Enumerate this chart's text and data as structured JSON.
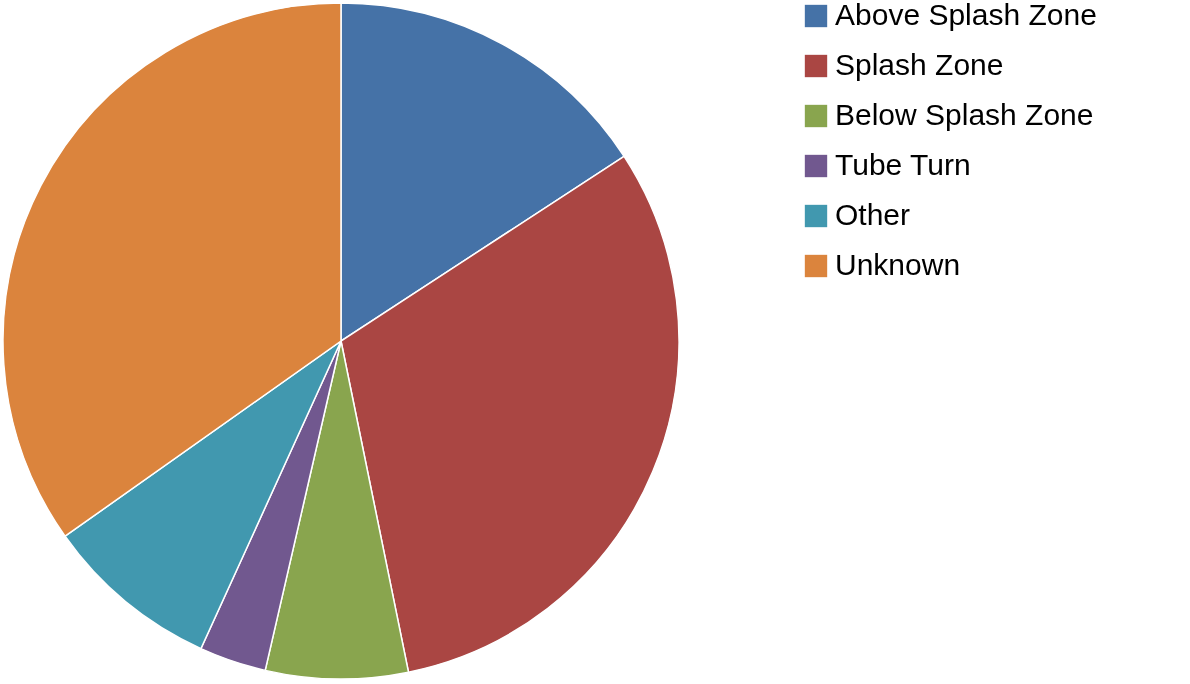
{
  "chart_data": {
    "type": "pie",
    "categories": [
      "Above Splash Zone",
      "Splash Zone",
      "Below Splash Zone",
      "Tube Turn",
      "Other",
      "Unknown"
    ],
    "values": [
      15.8,
      31.0,
      6.8,
      3.2,
      8.4,
      34.8
    ],
    "colors": [
      "#4572a7",
      "#aa4643",
      "#89a54e",
      "#71588f",
      "#4198af",
      "#db843d"
    ],
    "legend": "right"
  }
}
